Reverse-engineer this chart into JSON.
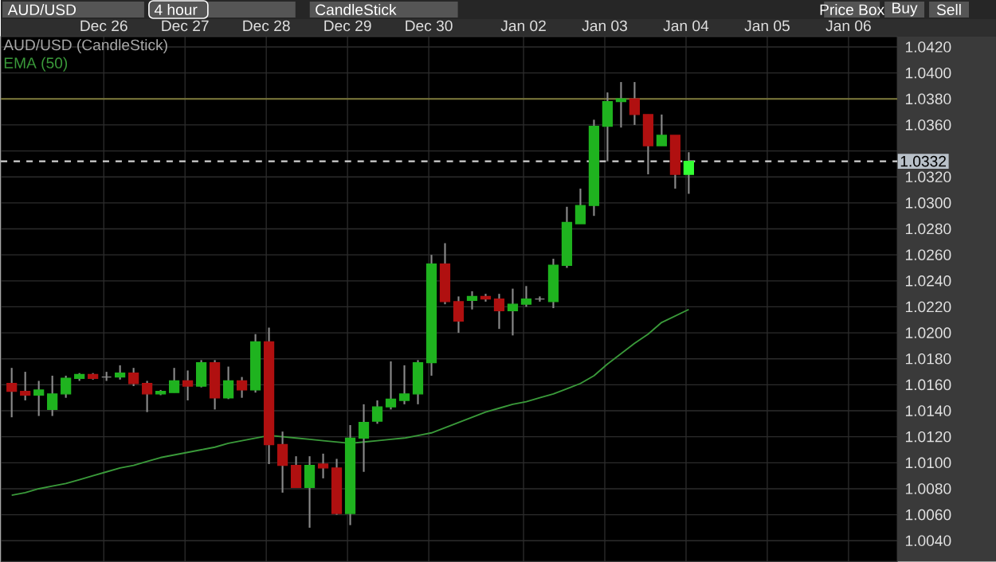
{
  "chart_data": {
    "type": "candlestick",
    "annotations": [
      "AUD/USD",
      "4 hour",
      "CandleStick",
      "Price Box",
      "Buy",
      "Sell"
    ],
    "categories": [
      null,
      null,
      null,
      null,
      null,
      null,
      null,
      "Dec 26",
      null,
      null,
      null,
      null,
      null,
      "Dec 27",
      null,
      null,
      null,
      null,
      null,
      "Dec 28",
      null,
      null,
      null,
      null,
      null,
      "Dec 29",
      null,
      null,
      null,
      null,
      null,
      "Dec 30",
      null,
      null,
      null,
      null,
      null,
      null,
      "Jan 02",
      null,
      null,
      null,
      null,
      null,
      "Jan 03",
      null,
      null,
      null,
      null,
      null,
      "Jan 04",
      null,
      null,
      null,
      null,
      null,
      "Jan 05",
      null,
      null,
      null,
      null,
      null,
      "Jan 06",
      null,
      null,
      null
    ],
    "series": [
      {
        "name": "AUD/USD (CandleStick)",
        "ohlc": [
          [
            1.0161,
            1.0173,
            1.0135,
            1.0155
          ],
          [
            1.0155,
            1.017,
            1.0148,
            1.0152
          ],
          [
            1.0152,
            1.0163,
            1.0136,
            1.0156
          ],
          [
            1.0141,
            1.0167,
            1.0136,
            1.0153
          ],
          [
            1.0153,
            1.0167,
            1.015,
            1.0165
          ],
          [
            1.0165,
            1.0169,
            1.0163,
            1.0168
          ],
          [
            1.0168,
            1.0169,
            1.0164,
            1.0165
          ],
          [
            1.0166,
            1.017,
            1.0163,
            1.0166
          ],
          [
            1.0166,
            1.0175,
            1.0164,
            1.0169
          ],
          [
            1.0169,
            1.0173,
            1.0159,
            1.0161
          ],
          [
            1.0161,
            1.0163,
            1.0139,
            1.0153
          ],
          [
            1.0153,
            1.0156,
            1.0152,
            1.0155
          ],
          [
            1.0154,
            1.0173,
            1.0154,
            1.0163
          ],
          [
            1.0163,
            1.0171,
            1.0148,
            1.0159
          ],
          [
            1.0159,
            1.0179,
            1.0158,
            1.0177
          ],
          [
            1.0177,
            1.0179,
            1.0141,
            1.015
          ],
          [
            1.015,
            1.0174,
            1.0149,
            1.0163
          ],
          [
            1.0163,
            1.0166,
            1.015,
            1.0156
          ],
          [
            1.0156,
            1.0199,
            1.0154,
            1.0193
          ],
          [
            1.0193,
            1.0204,
            1.0099,
            1.0114
          ],
          [
            1.0114,
            1.0124,
            1.0077,
            1.0098
          ],
          [
            1.0098,
            1.0105,
            1.0081,
            1.0081
          ],
          [
            1.0081,
            1.0105,
            1.005,
            1.0098
          ],
          [
            1.0099,
            1.0107,
            1.0088,
            1.0096
          ],
          [
            1.0096,
            1.0103,
            1.006,
            1.0061
          ],
          [
            1.0061,
            1.0129,
            1.0052,
            1.0119
          ],
          [
            1.0119,
            1.0145,
            1.0093,
            1.0131
          ],
          [
            1.0132,
            1.0148,
            1.013,
            1.0143
          ],
          [
            1.0143,
            1.0178,
            1.0141,
            1.0149
          ],
          [
            1.0148,
            1.0175,
            1.0145,
            1.0153
          ],
          [
            1.0153,
            1.0179,
            1.0145,
            1.0177
          ],
          [
            1.0177,
            1.026,
            1.0167,
            1.0253
          ],
          [
            1.0253,
            1.0269,
            1.0222,
            1.0224
          ],
          [
            1.0224,
            1.0228,
            1.02,
            1.0209
          ],
          [
            1.0225,
            1.0232,
            1.0218,
            1.0228
          ],
          [
            1.0228,
            1.023,
            1.0224,
            1.0226
          ],
          [
            1.0226,
            1.023,
            1.0203,
            1.0217
          ],
          [
            1.0217,
            1.0234,
            1.0198,
            1.0222
          ],
          [
            1.0222,
            1.0236,
            1.022,
            1.0226
          ],
          [
            1.0226,
            1.0228,
            1.0224,
            1.0226
          ],
          [
            1.0224,
            1.0257,
            1.0219,
            1.0252
          ],
          [
            1.0252,
            1.0297,
            1.025,
            1.0285
          ],
          [
            1.0284,
            1.0311,
            1.0284,
            1.0298
          ],
          [
            1.0298,
            1.0364,
            1.029,
            1.0359
          ],
          [
            1.0359,
            1.0385,
            1.0332,
            1.0378
          ],
          [
            1.0378,
            1.0393,
            1.0358,
            1.038
          ],
          [
            1.038,
            1.0393,
            1.036,
            1.0368
          ],
          [
            1.0368,
            1.0368,
            1.0322,
            1.0344
          ],
          [
            1.0344,
            1.0368,
            1.0344,
            1.0352
          ],
          [
            1.0352,
            1.0352,
            1.0311,
            1.0322
          ],
          [
            1.0322,
            1.0339,
            1.0307,
            1.0332
          ],
          null,
          null,
          null,
          null,
          null,
          null,
          null,
          null,
          null,
          null,
          null,
          null,
          null,
          null,
          null
        ],
        "colors": [
          "#b01010",
          "#b01010",
          "#1fb31f",
          "#1fb31f",
          "#1fb31f",
          "#1fb31f",
          "#b01010",
          "#8c8c8c",
          "#1fb31f",
          "#b01010",
          "#b01010",
          "#1fb31f",
          "#1fb31f",
          "#b01010",
          "#1fb31f",
          "#b01010",
          "#1fb31f",
          "#b01010",
          "#1fb31f",
          "#b01010",
          "#b01010",
          "#b01010",
          "#1fb31f",
          "#b01010",
          "#b01010",
          "#1fb31f",
          "#1fb31f",
          "#1fb31f",
          "#1fb31f",
          "#1fb31f",
          "#1fb31f",
          "#1fb31f",
          "#b01010",
          "#b01010",
          "#1fb31f",
          "#b01010",
          "#b01010",
          "#1fb31f",
          "#1fb31f",
          "#8c8c8c",
          "#1fb31f",
          "#1fb31f",
          "#1fb31f",
          "#1fb31f",
          "#1fb31f",
          "#1fb31f",
          "#b01010",
          "#b01010",
          "#1fb31f",
          "#b01010",
          "#33ff33",
          null,
          null,
          null,
          null,
          null,
          null,
          null,
          null,
          null,
          null,
          null,
          null,
          null,
          null,
          null
        ]
      },
      {
        "type": "line",
        "name": "EMA (50)",
        "color": "#3a9a3a",
        "values": [
          1.0075,
          1.0077,
          1.008,
          1.0082,
          1.0084,
          1.0087,
          1.009,
          1.0093,
          1.0096,
          1.0098,
          1.0101,
          1.0104,
          1.0106,
          1.0108,
          1.011,
          1.0112,
          1.0115,
          1.0117,
          1.0119,
          1.0121,
          1.012,
          1.0119,
          1.0118,
          1.0117,
          1.0116,
          1.0115,
          1.0116,
          1.0117,
          1.0118,
          1.0119,
          1.0121,
          1.0123,
          1.0127,
          1.0131,
          1.0135,
          1.0139,
          1.0142,
          1.0145,
          1.0147,
          1.015,
          1.0153,
          1.0157,
          1.0161,
          1.0167,
          1.0176,
          1.0184,
          1.0192,
          1.0199,
          1.0208,
          1.0213,
          1.0218,
          null,
          null,
          null,
          null,
          null,
          null,
          null,
          null,
          null,
          null,
          null,
          null,
          null,
          null,
          null
        ]
      }
    ],
    "ylim": [
      1.0024,
      1.0428
    ],
    "yticks": [
      {
        "value": 1.004,
        "label": "1.0040"
      },
      {
        "value": 1.006,
        "label": "1.0060"
      },
      {
        "value": 1.008,
        "label": "1.0080"
      },
      {
        "value": 1.01,
        "label": "1.0100"
      },
      {
        "value": 1.012,
        "label": "1.0120"
      },
      {
        "value": 1.014,
        "label": "1.0140"
      },
      {
        "value": 1.016,
        "label": "1.0160"
      },
      {
        "value": 1.018,
        "label": "1.0180"
      },
      {
        "value": 1.02,
        "label": "1.0200"
      },
      {
        "value": 1.022,
        "label": "1.0220"
      },
      {
        "value": 1.024,
        "label": "1.0240"
      },
      {
        "value": 1.026,
        "label": "1.0260"
      },
      {
        "value": 1.028,
        "label": "1.0280"
      },
      {
        "value": 1.03,
        "label": "1.0300"
      },
      {
        "value": 1.032,
        "label": "1.0320"
      },
      {
        "value": 1.034,
        "label": null
      },
      {
        "value": 1.036,
        "label": "1.0360"
      },
      {
        "value": 1.038,
        "label": "1.0380"
      },
      {
        "value": 1.04,
        "label": "1.0400"
      },
      {
        "value": 1.042,
        "label": "1.0420"
      }
    ],
    "ref_lines": [
      {
        "axis": "y",
        "value": 1.038,
        "color": "#7d7a3a",
        "line_style": "solid"
      },
      {
        "axis": "y",
        "value": 1.0332,
        "label": "1.0332",
        "color": "#d0d0d0",
        "line_style": "dashed"
      }
    ],
    "grid": true,
    "legend": "top left"
  }
}
